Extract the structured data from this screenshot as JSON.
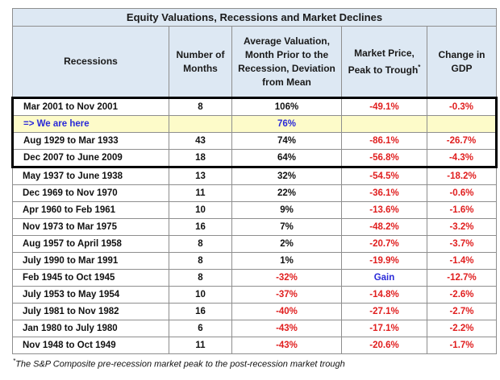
{
  "title": "Equity Valuations, Recessions and Market Declines",
  "columns": {
    "recessions": "Recessions",
    "months": "Number of Months",
    "valuation": "Average Valuation, Month Prior to the Recession, Deviation from Mean",
    "market": "Market Price, Peak to Trough",
    "market_mark": "*",
    "gdp": "Change in GDP"
  },
  "rows": [
    {
      "period": "Mar 2001 to Nov 2001",
      "months": "8",
      "valuation": "106%",
      "market": "-49.1%",
      "gdp": "-0.3%"
    },
    {
      "period": "=> We are here",
      "months": "",
      "valuation": "76%",
      "market": "",
      "gdp": ""
    },
    {
      "period": "Aug 1929 to Mar 1933",
      "months": "43",
      "valuation": "74%",
      "market": "-86.1%",
      "gdp": "-26.7%"
    },
    {
      "period": "Dec 2007 to June 2009",
      "months": "18",
      "valuation": "64%",
      "market": "-56.8%",
      "gdp": "-4.3%"
    },
    {
      "period": "May 1937 to June 1938",
      "months": "13",
      "valuation": "32%",
      "market": "-54.5%",
      "gdp": "-18.2%"
    },
    {
      "period": "Dec 1969 to Nov 1970",
      "months": "11",
      "valuation": "22%",
      "market": "-36.1%",
      "gdp": "-0.6%"
    },
    {
      "period": "Apr 1960 to Feb 1961",
      "months": "10",
      "valuation": "9%",
      "market": "-13.6%",
      "gdp": "-1.6%"
    },
    {
      "period": "Nov 1973 to Mar 1975",
      "months": "16",
      "valuation": "7%",
      "market": "-48.2%",
      "gdp": "-3.2%"
    },
    {
      "period": "Aug 1957 to April 1958",
      "months": "8",
      "valuation": "2%",
      "market": "-20.7%",
      "gdp": "-3.7%"
    },
    {
      "period": "July 1990 to Mar 1991",
      "months": "8",
      "valuation": "1%",
      "market": "-19.9%",
      "gdp": "-1.4%"
    },
    {
      "period": "Feb 1945 to Oct 1945",
      "months": "8",
      "valuation": "-32%",
      "market": "Gain",
      "gdp": "-12.7%"
    },
    {
      "period": "July 1953 to May 1954",
      "months": "10",
      "valuation": "-37%",
      "market": "-14.8%",
      "gdp": "-2.6%"
    },
    {
      "period": "July 1981 to Nov 1982",
      "months": "16",
      "valuation": "-40%",
      "market": "-27.1%",
      "gdp": "-2.7%"
    },
    {
      "period": "Jan 1980 to July 1980",
      "months": "6",
      "valuation": "-43%",
      "market": "-17.1%",
      "gdp": "-2.2%"
    },
    {
      "period": "Nov 1948 to Oct 1949",
      "months": "11",
      "valuation": "-43%",
      "market": "-20.6%",
      "gdp": "-1.7%"
    }
  ],
  "footnote": {
    "mark": "*",
    "text": "The S&P Composite pre-recession market peak to the post-recession market trough"
  },
  "colors": {
    "header_bg": "#dde8f3",
    "highlight_bg": "#fdfbc9",
    "negative": "#e01e1e",
    "highlight_text": "#2a2ad8"
  }
}
